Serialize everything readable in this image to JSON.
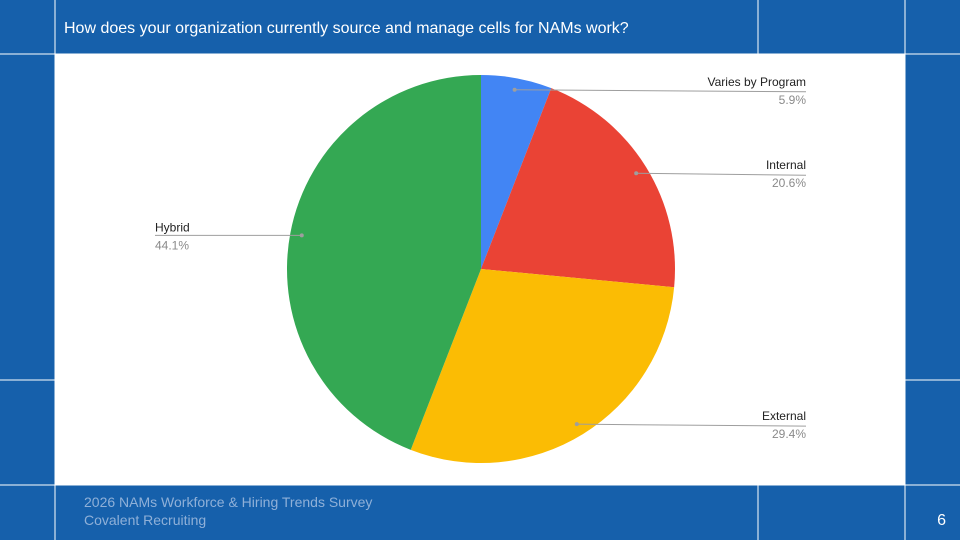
{
  "chart_data": {
    "type": "pie",
    "title": "How does your organization currently source and manage cells for NAMs work?",
    "categories": [
      "Varies by Program",
      "Internal",
      "External",
      "Hybrid"
    ],
    "values": [
      5.9,
      20.6,
      29.4,
      44.1
    ],
    "value_labels": [
      "5.9%",
      "20.6%",
      "29.4%",
      "44.1%"
    ],
    "colors": [
      "#4285f4",
      "#ea4335",
      "#fbbc04",
      "#34a853"
    ]
  },
  "footer": {
    "lines": [
      "2026 NAMs Workforce & Hiring Trends Survey",
      "Covalent Recruiting"
    ],
    "page_number": "6"
  }
}
